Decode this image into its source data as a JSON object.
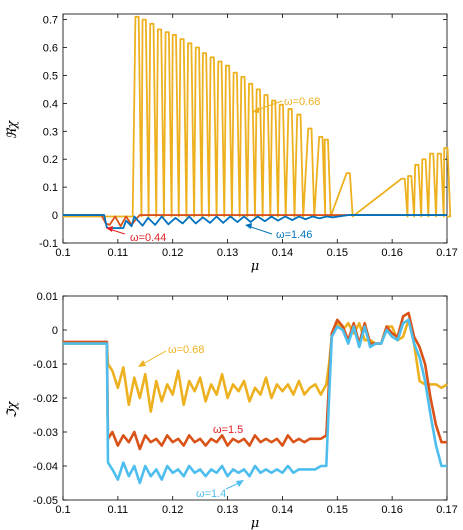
{
  "chart_data": [
    {
      "type": "line",
      "title": "",
      "xlabel": "μ",
      "ylabel": "ℜχ",
      "xlim": [
        0.1,
        0.17
      ],
      "ylim": [
        -0.1,
        0.72
      ],
      "xticks": [
        "0.1",
        "0.11",
        "0.12",
        "0.13",
        "0.14",
        "0.15",
        "0.16",
        "0.17"
      ],
      "yticks": [
        "-0.1",
        "0",
        "0.1",
        "0.2",
        "0.3",
        "0.4",
        "0.5",
        "0.6",
        "0.7"
      ],
      "grid": false,
      "legend": "none",
      "series": [
        {
          "name": "ω=0.68",
          "color": "#EDB120",
          "spikes": [
            [
              0.1135,
              0.71
            ],
            [
              0.1148,
              0.7
            ],
            [
              0.1162,
              0.685
            ],
            [
              0.1176,
              0.665
            ],
            [
              0.119,
              0.655
            ],
            [
              0.1203,
              0.645
            ],
            [
              0.1217,
              0.63
            ],
            [
              0.1231,
              0.615
            ],
            [
              0.1245,
              0.6
            ],
            [
              0.1258,
              0.58
            ],
            [
              0.1272,
              0.565
            ],
            [
              0.1286,
              0.55
            ],
            [
              0.13,
              0.535
            ],
            [
              0.1314,
              0.51
            ],
            [
              0.1328,
              0.495
            ],
            [
              0.1342,
              0.47
            ],
            [
              0.1356,
              0.45
            ],
            [
              0.137,
              0.43
            ],
            [
              0.1384,
              0.41
            ],
            [
              0.1398,
              0.395
            ],
            [
              0.1414,
              0.38
            ],
            [
              0.143,
              0.36
            ],
            [
              0.145,
              0.31
            ],
            [
              0.147,
              0.28
            ],
            [
              0.148,
              0.27
            ],
            [
              0.152,
              0.15
            ],
            [
              0.162,
              0.13
            ],
            [
              0.1632,
              0.14
            ],
            [
              0.1645,
              0.18
            ],
            [
              0.1658,
              0.2
            ],
            [
              0.1672,
              0.22
            ],
            [
              0.1686,
              0.22
            ],
            [
              0.1698,
              0.24
            ]
          ],
          "baseline": -0.005
        },
        {
          "name": "ω=0.44",
          "color": "#D95319",
          "x": [
            0.1,
            0.107,
            0.1078,
            0.1085,
            0.1095,
            0.1105,
            0.1115,
            0.1125,
            0.1135,
            0.114,
            0.17
          ],
          "y": [
            0,
            0,
            -0.03,
            -0.035,
            -0.005,
            -0.04,
            -0.005,
            -0.035,
            -0.01,
            0,
            0
          ]
        },
        {
          "name": "ω=1.46",
          "color": "#0072BD",
          "x": [
            0.1,
            0.1075,
            0.108,
            0.1085,
            0.109,
            0.111,
            0.1115,
            0.1125,
            0.113,
            0.1145,
            0.1155,
            0.1168,
            0.118,
            0.1192,
            0.1205,
            0.1218,
            0.123,
            0.1242,
            0.1255,
            0.1268,
            0.128,
            0.1292,
            0.1305,
            0.1318,
            0.133,
            0.1342,
            0.1355,
            0.1368,
            0.138,
            0.1392,
            0.1405,
            0.1418,
            0.143,
            0.1442,
            0.1455,
            0.1468,
            0.148,
            0.1492,
            0.151,
            0.152,
            0.17
          ],
          "y": [
            0,
            0,
            -0.045,
            -0.047,
            -0.047,
            -0.046,
            -0.02,
            -0.04,
            -0.005,
            -0.038,
            -0.01,
            -0.035,
            -0.005,
            -0.033,
            -0.01,
            -0.03,
            -0.005,
            -0.03,
            -0.008,
            -0.028,
            -0.005,
            -0.028,
            -0.005,
            -0.025,
            -0.005,
            -0.025,
            -0.005,
            -0.022,
            -0.005,
            -0.02,
            -0.005,
            -0.018,
            -0.005,
            -0.015,
            -0.005,
            -0.012,
            -0.005,
            -0.008,
            -0.003,
            0,
            0
          ]
        }
      ],
      "annotations": [
        {
          "text": "ω=0.68",
          "color": "#EDB120"
        },
        {
          "text": "ω=0.44",
          "color": "#E32227"
        },
        {
          "text": "ω=1.46",
          "color": "#0072BD"
        }
      ]
    },
    {
      "type": "line",
      "title": "",
      "xlabel": "μ",
      "ylabel": "ℑχ",
      "xlim": [
        0.1,
        0.17
      ],
      "ylim": [
        -0.05,
        0.01
      ],
      "xticks": [
        "0.1",
        "0.11",
        "0.12",
        "0.13",
        "0.14",
        "0.15",
        "0.16",
        "0.17"
      ],
      "yticks": [
        "-0.05",
        "-0.04",
        "-0.03",
        "-0.02",
        "-0.01",
        "0",
        "0.01"
      ],
      "grid": false,
      "legend": "none",
      "series": [
        {
          "name": "ω=0.68",
          "color": "#EDB120",
          "x": [
            0.1,
            0.108,
            0.1082,
            0.109,
            0.11,
            0.111,
            0.112,
            0.113,
            0.114,
            0.115,
            0.116,
            0.117,
            0.118,
            0.119,
            0.12,
            0.121,
            0.122,
            0.123,
            0.124,
            0.125,
            0.126,
            0.127,
            0.128,
            0.129,
            0.13,
            0.131,
            0.132,
            0.133,
            0.134,
            0.135,
            0.136,
            0.137,
            0.138,
            0.139,
            0.14,
            0.141,
            0.142,
            0.143,
            0.144,
            0.145,
            0.146,
            0.147,
            0.148,
            0.1485,
            0.149,
            0.15,
            0.151,
            0.152,
            0.153,
            0.154,
            0.155,
            0.156,
            0.157,
            0.158,
            0.159,
            0.16,
            0.161,
            0.162,
            0.163,
            0.164,
            0.165,
            0.166,
            0.167,
            0.168,
            0.169,
            0.17
          ],
          "y": [
            -0.004,
            -0.004,
            -0.01,
            -0.012,
            -0.017,
            -0.011,
            -0.022,
            -0.014,
            -0.02,
            -0.013,
            -0.024,
            -0.015,
            -0.021,
            -0.016,
            -0.019,
            -0.012,
            -0.022,
            -0.015,
            -0.018,
            -0.014,
            -0.021,
            -0.016,
            -0.019,
            -0.013,
            -0.02,
            -0.016,
            -0.018,
            -0.015,
            -0.021,
            -0.017,
            -0.019,
            -0.014,
            -0.02,
            -0.016,
            -0.018,
            -0.016,
            -0.019,
            -0.015,
            -0.019,
            -0.017,
            -0.016,
            -0.019,
            -0.016,
            -0.01,
            -0.002,
            0.002,
            0.0,
            0.002,
            -0.001,
            0.002,
            -0.003,
            -0.003,
            -0.004,
            -0.004,
            0.001,
            0.001,
            -0.003,
            -0.002,
            0.003,
            -0.004,
            -0.015,
            -0.016,
            -0.016,
            -0.016,
            -0.017,
            -0.016
          ]
        },
        {
          "name": "ω=1.5",
          "color": "#D95319",
          "x": [
            0.1,
            0.108,
            0.1082,
            0.109,
            0.11,
            0.111,
            0.112,
            0.113,
            0.114,
            0.115,
            0.116,
            0.117,
            0.118,
            0.119,
            0.12,
            0.121,
            0.122,
            0.123,
            0.124,
            0.125,
            0.126,
            0.127,
            0.128,
            0.129,
            0.13,
            0.131,
            0.132,
            0.133,
            0.134,
            0.135,
            0.136,
            0.137,
            0.138,
            0.139,
            0.14,
            0.141,
            0.142,
            0.143,
            0.144,
            0.145,
            0.146,
            0.147,
            0.148,
            0.1485,
            0.149,
            0.15,
            0.151,
            0.152,
            0.153,
            0.154,
            0.155,
            0.156,
            0.157,
            0.158,
            0.159,
            0.16,
            0.161,
            0.162,
            0.163,
            0.164,
            0.165,
            0.166,
            0.167,
            0.168,
            0.169,
            0.17
          ],
          "y": [
            -0.0035,
            -0.0035,
            -0.032,
            -0.03,
            -0.034,
            -0.031,
            -0.033,
            -0.03,
            -0.035,
            -0.031,
            -0.033,
            -0.032,
            -0.034,
            -0.031,
            -0.033,
            -0.032,
            -0.034,
            -0.031,
            -0.033,
            -0.032,
            -0.034,
            -0.032,
            -0.033,
            -0.031,
            -0.034,
            -0.032,
            -0.033,
            -0.032,
            -0.034,
            -0.031,
            -0.033,
            -0.032,
            -0.033,
            -0.032,
            -0.034,
            -0.031,
            -0.033,
            -0.032,
            -0.033,
            -0.032,
            -0.032,
            -0.032,
            -0.031,
            -0.015,
            -0.001,
            0.003,
            0.001,
            -0.003,
            0.002,
            -0.004,
            0.002,
            -0.004,
            -0.004,
            -0.004,
            0.001,
            -0.001,
            -0.002,
            0.004,
            0.005,
            -0.002,
            -0.005,
            -0.01,
            -0.02,
            -0.028,
            -0.033,
            -0.033
          ]
        },
        {
          "name": "ω=1.4",
          "color": "#4DBEEE",
          "x": [
            0.1,
            0.108,
            0.1082,
            0.109,
            0.11,
            0.111,
            0.112,
            0.113,
            0.114,
            0.115,
            0.116,
            0.117,
            0.118,
            0.119,
            0.12,
            0.121,
            0.122,
            0.123,
            0.124,
            0.125,
            0.126,
            0.127,
            0.128,
            0.129,
            0.13,
            0.131,
            0.132,
            0.133,
            0.134,
            0.135,
            0.136,
            0.137,
            0.138,
            0.139,
            0.14,
            0.141,
            0.142,
            0.143,
            0.144,
            0.145,
            0.146,
            0.147,
            0.148,
            0.1485,
            0.149,
            0.15,
            0.151,
            0.152,
            0.153,
            0.154,
            0.155,
            0.156,
            0.157,
            0.158,
            0.159,
            0.16,
            0.161,
            0.162,
            0.163,
            0.164,
            0.165,
            0.166,
            0.167,
            0.168,
            0.169,
            0.17
          ],
          "y": [
            -0.004,
            -0.004,
            -0.039,
            -0.041,
            -0.044,
            -0.039,
            -0.043,
            -0.04,
            -0.045,
            -0.04,
            -0.043,
            -0.041,
            -0.044,
            -0.04,
            -0.042,
            -0.041,
            -0.043,
            -0.04,
            -0.042,
            -0.041,
            -0.043,
            -0.041,
            -0.042,
            -0.04,
            -0.043,
            -0.041,
            -0.042,
            -0.041,
            -0.043,
            -0.04,
            -0.042,
            -0.041,
            -0.042,
            -0.041,
            -0.042,
            -0.04,
            -0.042,
            -0.041,
            -0.041,
            -0.041,
            -0.041,
            -0.04,
            -0.04,
            -0.02,
            -0.002,
            0.001,
            0.0,
            -0.004,
            0.001,
            -0.005,
            0.001,
            -0.005,
            -0.004,
            -0.004,
            0.0,
            -0.002,
            -0.003,
            0.002,
            0.003,
            -0.004,
            -0.008,
            -0.015,
            -0.025,
            -0.034,
            -0.04,
            -0.04
          ]
        }
      ],
      "annotations": [
        {
          "text": "ω=0.68",
          "color": "#EDB120"
        },
        {
          "text": "ω=1.5",
          "color": "#E32227"
        },
        {
          "text": "ω=1.4",
          "color": "#4DBEEE"
        }
      ]
    }
  ]
}
